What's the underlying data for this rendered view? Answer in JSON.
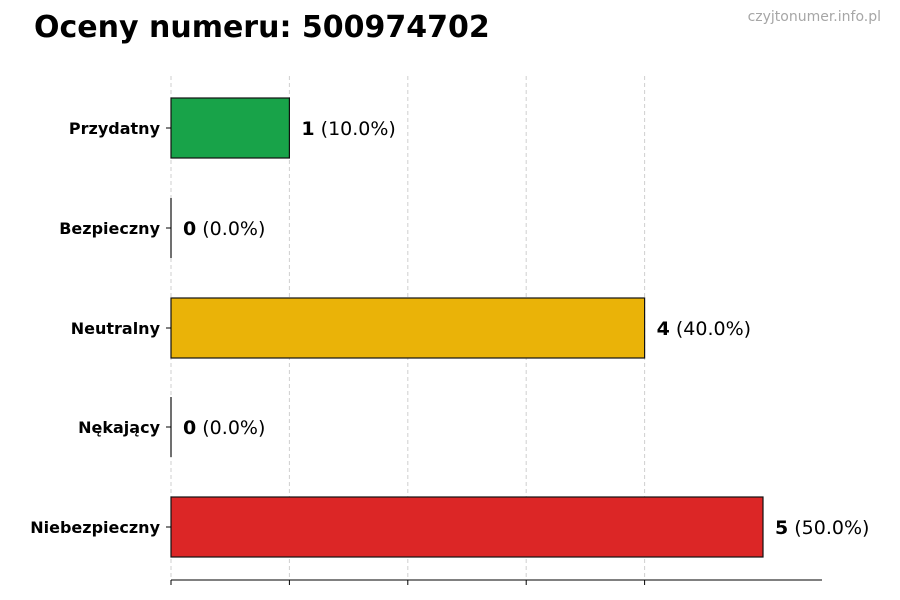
{
  "header": {
    "title": "Oceny numeru: 500974702",
    "watermark": "czyjtonumer.info.pl"
  },
  "chart_data": {
    "type": "bar",
    "orientation": "horizontal",
    "title": "Oceny numeru: 500974702",
    "xlabel": "",
    "ylabel": "",
    "xlim": [
      0,
      5.5
    ],
    "grid": "x-dashed",
    "categories": [
      "Przydatny",
      "Bezpieczny",
      "Neutralny",
      "Nękający",
      "Niebezpieczny"
    ],
    "values": [
      1,
      0,
      4,
      0,
      5
    ],
    "percent_labels": [
      "(10.0%)",
      "(0.0%)",
      "(40.0%)",
      "(0.0%)",
      "(50.0%)"
    ],
    "colors": [
      "#18a349",
      "#9e9e9e",
      "#eab308",
      "#9e9e9e",
      "#dc2626"
    ]
  }
}
